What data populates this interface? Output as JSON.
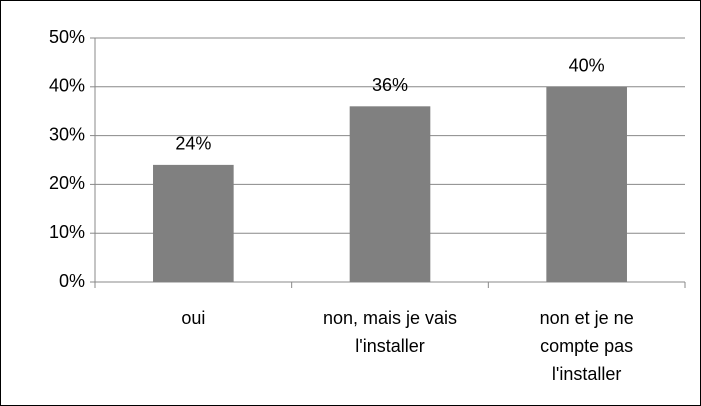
{
  "chart_data": {
    "type": "bar",
    "categories": [
      "oui",
      "non, mais je vais l'installer",
      "non et je ne compte pas l'installer"
    ],
    "values": [
      24,
      36,
      40
    ],
    "value_labels": [
      "24%",
      "36%",
      "40%"
    ],
    "color": "#808080",
    "ylim": [
      0,
      50
    ],
    "yticks": [
      {
        "value": 0,
        "label": "0%"
      },
      {
        "value": 10,
        "label": "10%"
      },
      {
        "value": 20,
        "label": "20%"
      },
      {
        "value": 30,
        "label": "30%"
      },
      {
        "value": 40,
        "label": "40%"
      },
      {
        "value": 50,
        "label": "50%"
      }
    ],
    "grid": true
  }
}
